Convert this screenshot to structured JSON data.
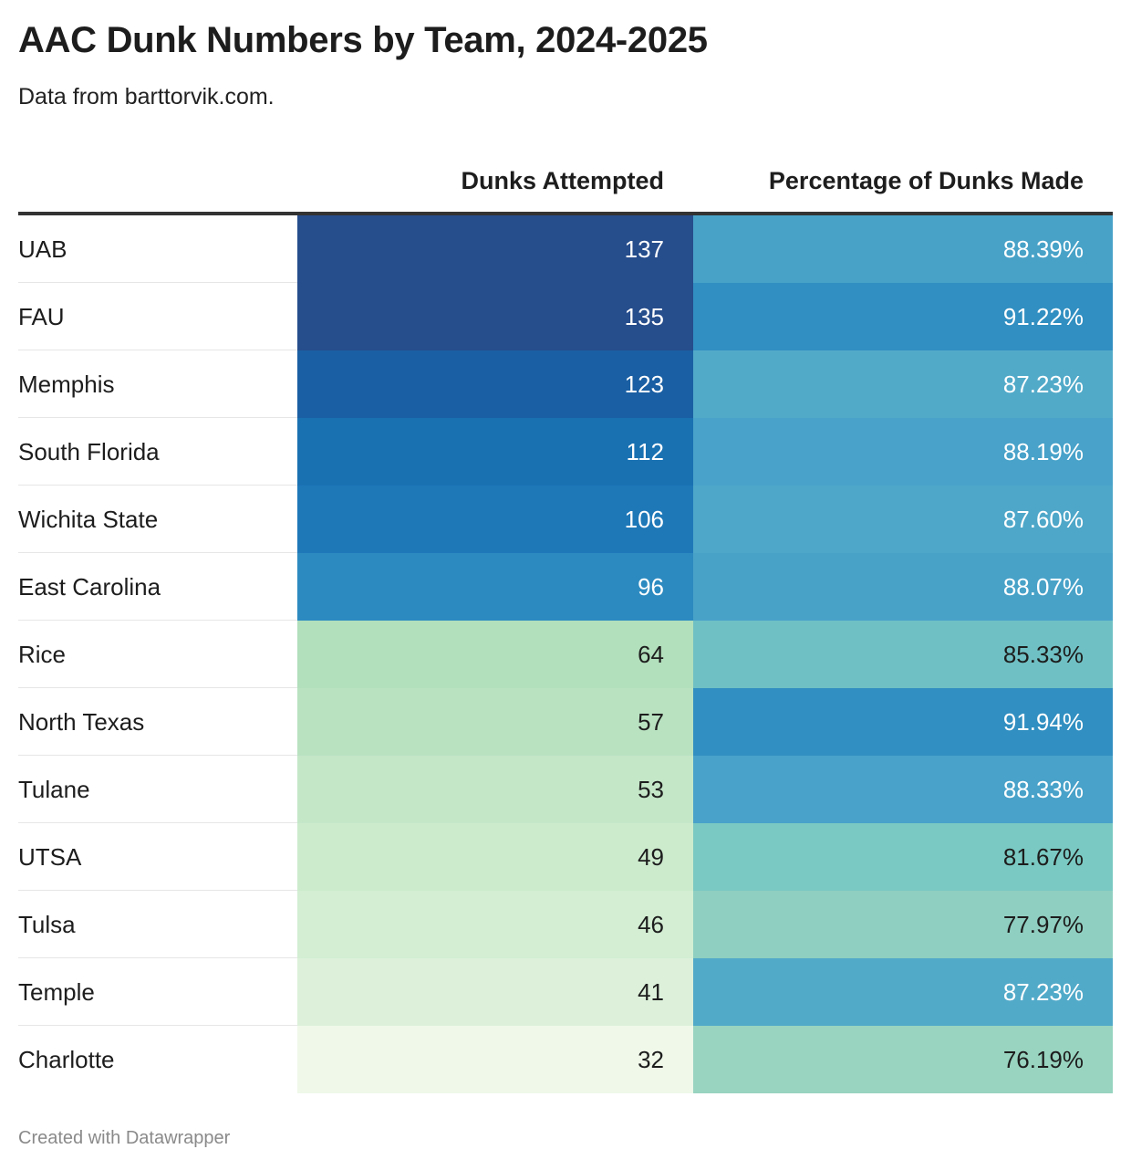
{
  "title": "AAC Dunk Numbers by Team, 2024-2025",
  "subtitle": "Data from barttorvik.com.",
  "footer": "Created with Datawrapper",
  "chart_data": {
    "type": "table",
    "columns": [
      "",
      "Dunks Attempted",
      "Percentage of Dunks Made"
    ],
    "rows": [
      {
        "team": "UAB",
        "dunks": "137",
        "pct": "88.39%",
        "dunks_color": "#264d8c",
        "pct_color": "#48a2c8",
        "dunks_text": "#ffffff",
        "pct_text": "#ffffff"
      },
      {
        "team": "FAU",
        "dunks": "135",
        "pct": "91.22%",
        "dunks_color": "#264d8c",
        "pct_color": "#318fc1",
        "dunks_text": "#ffffff",
        "pct_text": "#ffffff"
      },
      {
        "team": "Memphis",
        "dunks": "123",
        "pct": "87.23%",
        "dunks_color": "#1a5fa3",
        "pct_color": "#52aac9",
        "dunks_text": "#ffffff",
        "pct_text": "#ffffff"
      },
      {
        "team": "South Florida",
        "dunks": "112",
        "pct": "88.19%",
        "dunks_color": "#1971b2",
        "pct_color": "#48a2c9",
        "dunks_text": "#ffffff",
        "pct_text": "#ffffff"
      },
      {
        "team": "Wichita State",
        "dunks": "106",
        "pct": "87.60%",
        "dunks_color": "#1e78b8",
        "pct_color": "#4ea7c9",
        "dunks_text": "#ffffff",
        "pct_text": "#ffffff"
      },
      {
        "team": "East Carolina",
        "dunks": "96",
        "pct": "88.07%",
        "dunks_color": "#2c8ac0",
        "pct_color": "#48a2c8",
        "dunks_text": "#ffffff",
        "pct_text": "#ffffff"
      },
      {
        "team": "Rice",
        "dunks": "64",
        "pct": "85.33%",
        "dunks_color": "#b2dfbc",
        "pct_color": "#6fc0c4",
        "dunks_text": "#1d1d1d",
        "pct_text": "#1d1d1d"
      },
      {
        "team": "North Texas",
        "dunks": "57",
        "pct": "91.94%",
        "dunks_color": "#b9e2c1",
        "pct_color": "#318fc1",
        "dunks_text": "#1d1d1d",
        "pct_text": "#ffffff"
      },
      {
        "team": "Tulane",
        "dunks": "53",
        "pct": "88.33%",
        "dunks_color": "#c4e7c8",
        "pct_color": "#48a2c9",
        "dunks_text": "#1d1d1d",
        "pct_text": "#ffffff"
      },
      {
        "team": "UTSA",
        "dunks": "49",
        "pct": "81.67%",
        "dunks_color": "#ccebcd",
        "pct_color": "#7ac9c2",
        "dunks_text": "#1d1d1d",
        "pct_text": "#1d1d1d"
      },
      {
        "team": "Tulsa",
        "dunks": "46",
        "pct": "77.97%",
        "dunks_color": "#d3eed3",
        "pct_color": "#8fcfc1",
        "dunks_text": "#1d1d1d",
        "pct_text": "#1d1d1d"
      },
      {
        "team": "Temple",
        "dunks": "41",
        "pct": "87.23%",
        "dunks_color": "#ddf1da",
        "pct_color": "#52aac9",
        "dunks_text": "#1d1d1d",
        "pct_text": "#ffffff"
      },
      {
        "team": "Charlotte",
        "dunks": "32",
        "pct": "76.19%",
        "dunks_color": "#eff8e9",
        "pct_color": "#98d4c0",
        "dunks_text": "#1d1d1d",
        "pct_text": "#1d1d1d"
      }
    ]
  }
}
